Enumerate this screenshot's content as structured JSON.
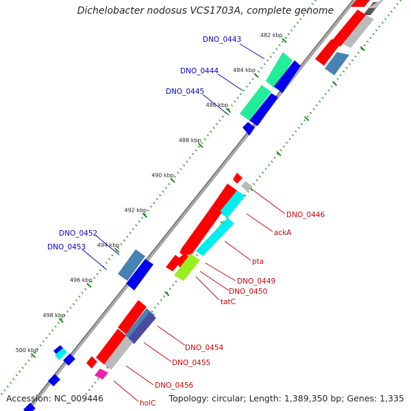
{
  "title": "Dichelobacter nodosus VCS1703A, complete genome",
  "accession": "Accession: NC_009446",
  "topology": "Topology: circular; Length: 1,389,350 bp; Genes: 1,335",
  "colors": {
    "backbone": "#9a9a9a",
    "tick": "#1c8a1c",
    "label_blue": "#0000cc",
    "label_red": "#cc0000",
    "red": "#ff0000",
    "blue": "#0000ee",
    "steel": "#4682b4",
    "seagreen": "#22ee99",
    "cyan": "#00eeee",
    "lime": "#99ee22",
    "grey": "#bbbbbb",
    "darkgrey": "#666666",
    "slate": "#4a4aa0",
    "magenta": "#ee22aa"
  },
  "kbp_ticks": [
    "482 kbp",
    "484 kbp",
    "486 kbp",
    "488 kbp",
    "490 kbp",
    "492 kbp",
    "494 kbp",
    "496 kbp",
    "498 kbp",
    "500 kbp"
  ],
  "gene_labels": [
    {
      "name": "DNO_0443",
      "side": "left"
    },
    {
      "name": "DNO_0444",
      "side": "left"
    },
    {
      "name": "DNO_0445",
      "side": "left"
    },
    {
      "name": "DNO_0452",
      "side": "left"
    },
    {
      "name": "DNO_0453",
      "side": "left"
    },
    {
      "name": "DNO_0446",
      "side": "right"
    },
    {
      "name": "ackA",
      "side": "right"
    },
    {
      "name": "pta",
      "side": "right"
    },
    {
      "name": "DNO_0449",
      "side": "right"
    },
    {
      "name": "DNO_0450",
      "side": "right"
    },
    {
      "name": "tatC",
      "side": "right"
    },
    {
      "name": "DNO_0454",
      "side": "right"
    },
    {
      "name": "DNO_0455",
      "side": "right"
    },
    {
      "name": "DNO_0456",
      "side": "right"
    },
    {
      "name": "holC",
      "side": "right"
    }
  ]
}
